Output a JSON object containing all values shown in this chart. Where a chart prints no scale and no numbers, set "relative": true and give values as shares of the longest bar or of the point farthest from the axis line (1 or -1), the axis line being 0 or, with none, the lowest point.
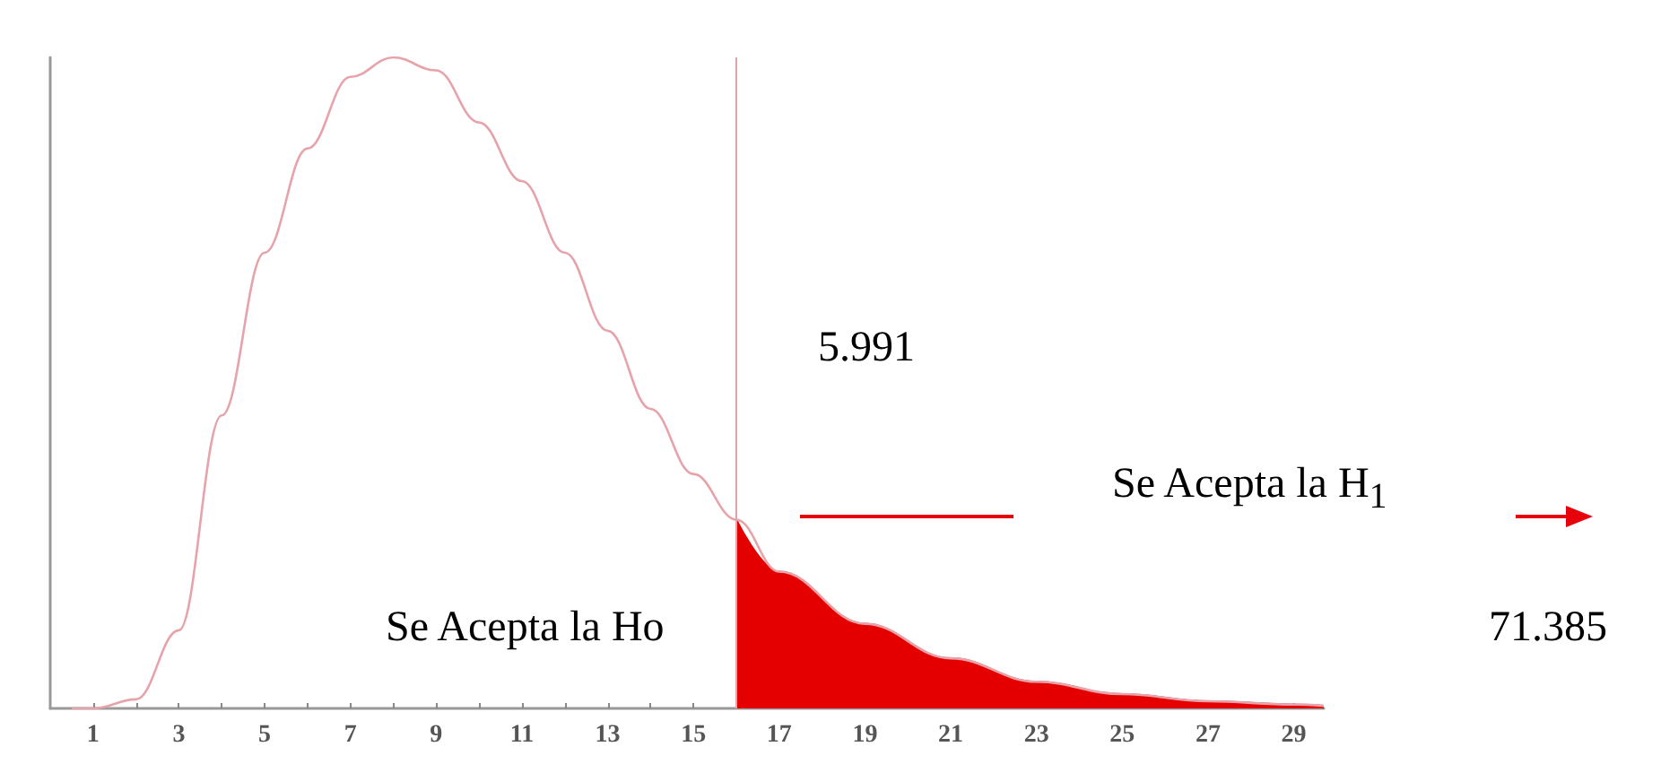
{
  "chart_data": {
    "type": "line",
    "relative": true,
    "xlim": [
      0,
      29.7
    ],
    "xticks": [
      1,
      {
        "value": 2,
        "label": null
      },
      3,
      {
        "value": 4,
        "label": null
      },
      5,
      {
        "value": 6,
        "label": null
      },
      7,
      {
        "value": 8,
        "label": null
      },
      9,
      {
        "value": 10,
        "label": null
      },
      11,
      {
        "value": 12,
        "label": null
      },
      13,
      {
        "value": 14,
        "label": null
      },
      15,
      {
        "value": 16,
        "label": null
      },
      17,
      {
        "value": 18,
        "label": null
      },
      19,
      {
        "value": 20,
        "label": null
      },
      21,
      {
        "value": 22,
        "label": null
      },
      23,
      {
        "value": 24,
        "label": null
      },
      25,
      {
        "value": 26,
        "label": null
      },
      27,
      {
        "value": 28,
        "label": null
      },
      29
    ],
    "series": [
      {
        "color": "#e6a3aa",
        "x": [
          0.5,
          1,
          2,
          3,
          4,
          5,
          6,
          7,
          8,
          9,
          10,
          11,
          12,
          13,
          14,
          15,
          16,
          17,
          19,
          21,
          23,
          25,
          27,
          29,
          29.7
        ],
        "values": [
          0,
          0,
          0.014,
          0.12,
          0.45,
          0.7,
          0.86,
          0.97,
          1,
          0.98,
          0.9,
          0.81,
          0.7,
          0.58,
          0.46,
          0.36,
          0.29,
          0.21,
          0.13,
          0.077,
          0.041,
          0.022,
          0.011,
          0.006,
          0.004
        ]
      },
      {
        "type": "area",
        "color": "#e50000",
        "x": [
          16,
          17,
          19,
          21,
          23,
          25,
          27,
          29,
          29.7
        ],
        "values": [
          0.29,
          0.21,
          0.13,
          0.077,
          0.041,
          0.022,
          0.011,
          0.006,
          0.004
        ]
      }
    ],
    "ref_lines": [
      {
        "axis": "x",
        "value": 16,
        "color": "#d8a6ac"
      }
    ],
    "annotations": [
      "5.991",
      "Se Acepta la H$_{1}$",
      "Se Acepta la Ho",
      "71.385"
    ]
  }
}
